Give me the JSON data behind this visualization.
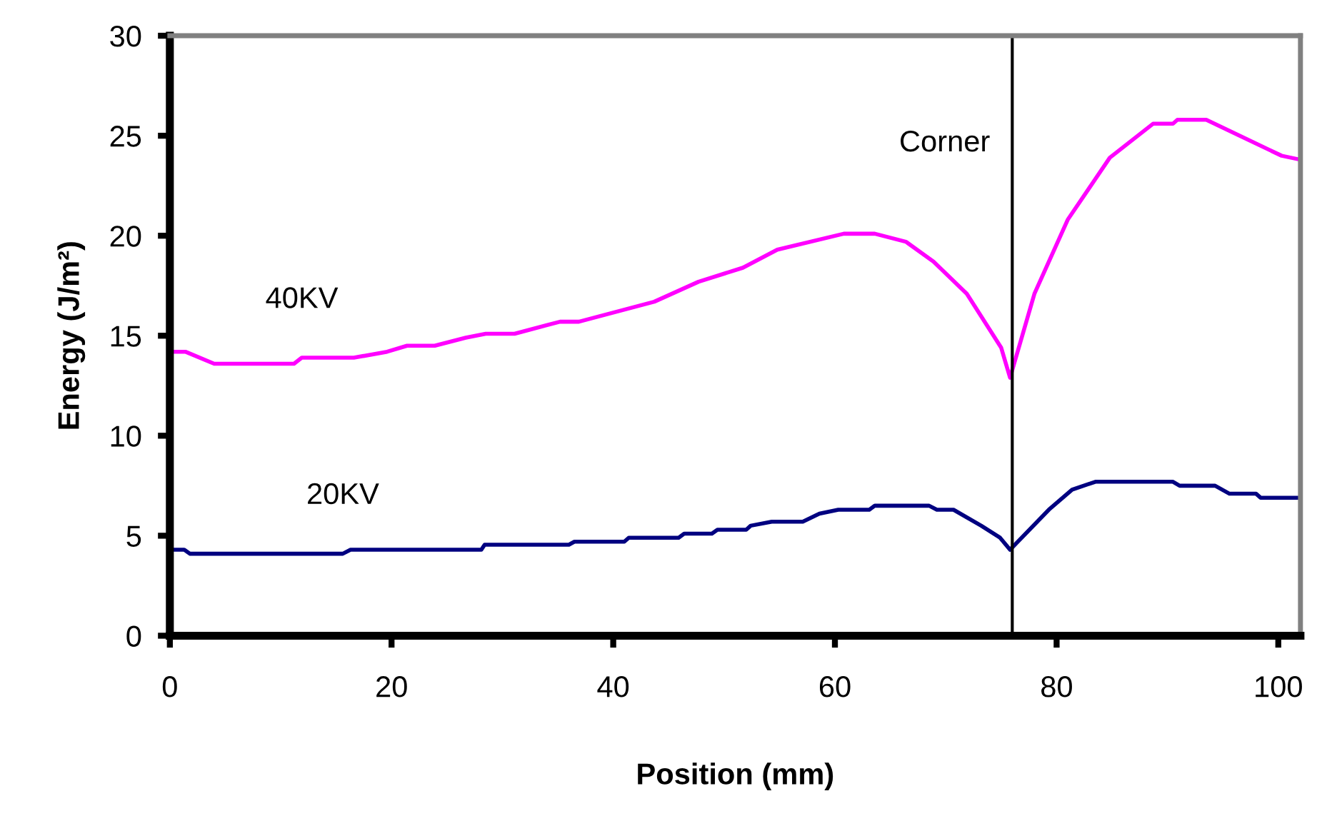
{
  "chart_data": {
    "type": "line",
    "xlabel": "Position (mm)",
    "ylabel": "Energy (J/m²)",
    "xlim": [
      0,
      102
    ],
    "ylim": [
      0,
      30
    ],
    "xticks": [
      0,
      20,
      40,
      60,
      80,
      100
    ],
    "yticks": [
      0,
      5,
      10,
      15,
      20,
      25,
      30
    ],
    "grid": false,
    "legend": false,
    "marker": "none",
    "line_style": "solid",
    "series": [
      {
        "name": "40KV",
        "color": "#ff00ff",
        "x": [
          0,
          1.4,
          4,
          11.2,
          11.9,
          16.6,
          19.6,
          21.4,
          23.9,
          26.7,
          28.5,
          31.1,
          35.2,
          36.9,
          43.7,
          47.7,
          51.7,
          54.8,
          60.8,
          63.6,
          66.4,
          68.9,
          71.9,
          75.0,
          75.8,
          78.0,
          81.0,
          84.8,
          88.7,
          90.5,
          90.9,
          93.5,
          96.5,
          100.3,
          102
        ],
        "values": [
          14.2,
          14.2,
          13.6,
          13.6,
          13.9,
          13.9,
          14.2,
          14.5,
          14.5,
          14.9,
          15.1,
          15.1,
          15.7,
          15.7,
          16.7,
          17.7,
          18.4,
          19.3,
          20.1,
          20.1,
          19.7,
          18.7,
          17.1,
          14.4,
          12.9,
          17.1,
          20.8,
          23.9,
          25.6,
          25.6,
          25.8,
          25.8,
          25.0,
          24.0,
          23.8
        ]
      },
      {
        "name": "20KV",
        "color": "#000080",
        "x": [
          0,
          1.3,
          1.8,
          15.6,
          16.3,
          28.1,
          28.4,
          36.0,
          36.5,
          41.0,
          41.4,
          45.9,
          46.4,
          48.9,
          49.4,
          52.0,
          52.4,
          54.3,
          57.1,
          58.6,
          60.3,
          63.1,
          63.6,
          68.5,
          69.2,
          70.7,
          73.2,
          74.9,
          75.8,
          79.3,
          81.4,
          83.5,
          90.5,
          91.1,
          94.3,
          95.6,
          98.0,
          98.4,
          102
        ],
        "values": [
          4.3,
          4.3,
          4.1,
          4.1,
          4.3,
          4.3,
          4.55,
          4.55,
          4.7,
          4.7,
          4.9,
          4.9,
          5.1,
          5.1,
          5.3,
          5.3,
          5.5,
          5.7,
          5.7,
          6.1,
          6.3,
          6.3,
          6.5,
          6.5,
          6.3,
          6.3,
          5.5,
          4.9,
          4.3,
          6.3,
          7.3,
          7.7,
          7.7,
          7.5,
          7.5,
          7.1,
          7.1,
          6.9,
          6.9
        ]
      }
    ],
    "ref_lines": [
      {
        "axis": "x",
        "value": 76,
        "label": "Corner",
        "color": "#000000",
        "line_style": "solid"
      }
    ]
  }
}
